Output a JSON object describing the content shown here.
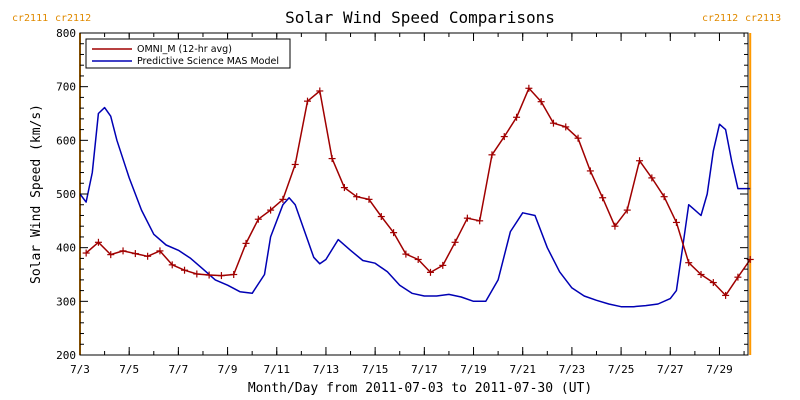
{
  "chart_data": {
    "type": "line",
    "title": "Solar Wind Speed Comparisons",
    "xlabel": "Month/Day from 2011-07-03 to 2011-07-30 (UT)",
    "ylabel": "Solar Wind Speed (km/s)",
    "ylim": [
      200,
      800
    ],
    "xlim": [
      "2011-07-03",
      "2011-07-30"
    ],
    "y_ticks": [
      "200",
      "300",
      "400",
      "500",
      "600",
      "700",
      "800"
    ],
    "x_ticks": [
      "7/3",
      "7/5",
      "7/7",
      "7/9",
      "7/11",
      "7/13",
      "7/15",
      "7/17",
      "7/19",
      "7/21",
      "7/23",
      "7/25",
      "7/27",
      "7/29"
    ],
    "grid": false,
    "legend_position": "top-left",
    "carrington_markers": [
      {
        "labels": [
          "cr2111",
          "cr2112"
        ],
        "x": "2011-07-03 00:00"
      },
      {
        "labels": [
          "cr2112",
          "cr2113"
        ],
        "x": "2011-07-30 06:00"
      }
    ],
    "series": [
      {
        "name": "OMNI_M (12-hr avg)",
        "color": "#a00000",
        "marker": "plus",
        "x": [
          "2011-07-03 06:00",
          "2011-07-03 18:00",
          "2011-07-04 06:00",
          "2011-07-04 18:00",
          "2011-07-05 06:00",
          "2011-07-05 18:00",
          "2011-07-06 06:00",
          "2011-07-06 18:00",
          "2011-07-07 06:00",
          "2011-07-07 18:00",
          "2011-07-08 06:00",
          "2011-07-08 18:00",
          "2011-07-09 06:00",
          "2011-07-09 18:00",
          "2011-07-10 06:00",
          "2011-07-10 18:00",
          "2011-07-11 06:00",
          "2011-07-11 18:00",
          "2011-07-12 06:00",
          "2011-07-12 18:00",
          "2011-07-13 06:00",
          "2011-07-13 18:00",
          "2011-07-14 06:00",
          "2011-07-14 18:00",
          "2011-07-15 06:00",
          "2011-07-15 18:00",
          "2011-07-16 06:00",
          "2011-07-16 18:00",
          "2011-07-17 06:00",
          "2011-07-17 18:00",
          "2011-07-18 06:00",
          "2011-07-18 18:00",
          "2011-07-19 06:00",
          "2011-07-19 18:00",
          "2011-07-20 06:00",
          "2011-07-20 18:00",
          "2011-07-21 06:00",
          "2011-07-21 18:00",
          "2011-07-22 06:00",
          "2011-07-22 18:00",
          "2011-07-23 06:00",
          "2011-07-23 18:00",
          "2011-07-24 06:00",
          "2011-07-24 18:00",
          "2011-07-25 06:00",
          "2011-07-25 18:00",
          "2011-07-26 06:00",
          "2011-07-26 18:00",
          "2011-07-27 06:00",
          "2011-07-27 18:00",
          "2011-07-28 06:00",
          "2011-07-28 18:00",
          "2011-07-29 06:00",
          "2011-07-29 18:00",
          "2011-07-30 06:00"
        ],
        "values": [
          390,
          410,
          387,
          394,
          389,
          384,
          394,
          368,
          358,
          351,
          349,
          348,
          350,
          408,
          453,
          470,
          490,
          555,
          673,
          692,
          566,
          512,
          495,
          490,
          458,
          428,
          388,
          378,
          354,
          367,
          410,
          455,
          450,
          573,
          607,
          643,
          697,
          672,
          632,
          625,
          604,
          543,
          493,
          440,
          470,
          562,
          530,
          495,
          447,
          372,
          350,
          335,
          311,
          345,
          378
        ]
      },
      {
        "name": "Predictive Science MAS Model",
        "color": "#0000b4",
        "marker": "none",
        "x": [
          "2011-07-03 00:00",
          "2011-07-03 06:00",
          "2011-07-03 12:00",
          "2011-07-03 18:00",
          "2011-07-04 00:00",
          "2011-07-04 06:00",
          "2011-07-04 12:00",
          "2011-07-05 00:00",
          "2011-07-05 12:00",
          "2011-07-06 00:00",
          "2011-07-06 12:00",
          "2011-07-07 00:00",
          "2011-07-07 12:00",
          "2011-07-08 00:00",
          "2011-07-08 12:00",
          "2011-07-09 00:00",
          "2011-07-09 12:00",
          "2011-07-10 00:00",
          "2011-07-10 12:00",
          "2011-07-10 18:00",
          "2011-07-11 06:00",
          "2011-07-11 12:00",
          "2011-07-11 18:00",
          "2011-07-12 06:00",
          "2011-07-12 12:00",
          "2011-07-12 18:00",
          "2011-07-13 00:00",
          "2011-07-13 12:00",
          "2011-07-14 00:00",
          "2011-07-14 12:00",
          "2011-07-15 00:00",
          "2011-07-15 12:00",
          "2011-07-16 00:00",
          "2011-07-16 12:00",
          "2011-07-17 00:00",
          "2011-07-17 12:00",
          "2011-07-18 00:00",
          "2011-07-18 12:00",
          "2011-07-19 00:00",
          "2011-07-19 12:00",
          "2011-07-20 00:00",
          "2011-07-20 12:00",
          "2011-07-21 00:00",
          "2011-07-21 12:00",
          "2011-07-22 00:00",
          "2011-07-22 12:00",
          "2011-07-23 00:00",
          "2011-07-23 12:00",
          "2011-07-24 00:00",
          "2011-07-24 12:00",
          "2011-07-25 00:00",
          "2011-07-25 12:00",
          "2011-07-26 00:00",
          "2011-07-26 12:00",
          "2011-07-27 00:00",
          "2011-07-27 06:00",
          "2011-07-27 12:00",
          "2011-07-27 18:00",
          "2011-07-28 00:00",
          "2011-07-28 06:00",
          "2011-07-28 12:00",
          "2011-07-28 18:00",
          "2011-07-29 00:00",
          "2011-07-29 06:00",
          "2011-07-29 12:00",
          "2011-07-29 18:00",
          "2011-07-30 00:00",
          "2011-07-30 06:00"
        ],
        "values": [
          500,
          485,
          540,
          650,
          661,
          645,
          600,
          530,
          470,
          425,
          405,
          395,
          380,
          360,
          340,
          330,
          318,
          315,
          350,
          420,
          480,
          493,
          480,
          415,
          382,
          370,
          378,
          415,
          395,
          376,
          371,
          355,
          330,
          315,
          310,
          310,
          313,
          308,
          300,
          300,
          340,
          430,
          465,
          460,
          400,
          355,
          325,
          310,
          302,
          295,
          290,
          290,
          292,
          295,
          305,
          320,
          400,
          480,
          470,
          460,
          500,
          580,
          630,
          620,
          560,
          510,
          510,
          510
        ]
      }
    ]
  }
}
